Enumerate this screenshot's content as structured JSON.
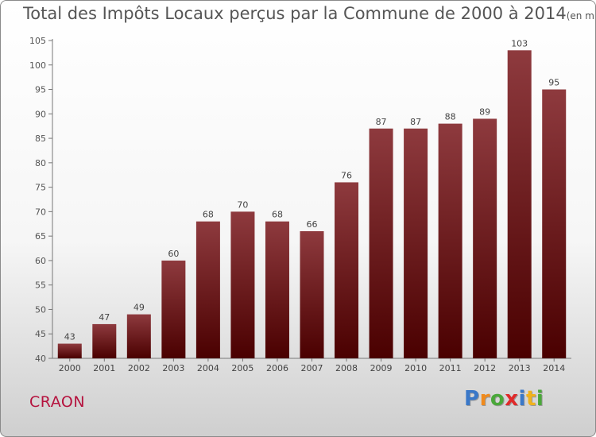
{
  "title": "Total des Impôts Locaux perçus par la Commune de 2000 à 2014",
  "title_unit": "(en milliers d'€)",
  "commune": "CRAON",
  "logo": {
    "text": "Proxiti",
    "letters": [
      {
        "ch": "P",
        "color": "#3a78c8"
      },
      {
        "ch": "r",
        "color": "#f08a1c"
      },
      {
        "ch": "o",
        "color": "#4aa83a"
      },
      {
        "ch": "x",
        "color": "#e02a2a"
      },
      {
        "ch": "i",
        "color": "#3a78c8"
      },
      {
        "ch": "t",
        "color": "#f0b21c"
      },
      {
        "ch": "i",
        "color": "#4aa83a"
      }
    ]
  },
  "colors": {
    "bar_top": "#8e3a3e",
    "bar_bottom": "#4a0000",
    "text": "#555555",
    "commune": "#b5123e"
  },
  "chart_data": {
    "type": "bar",
    "title": "Total des Impôts Locaux perçus par la Commune de 2000 à 2014",
    "ylabel": "en milliers d'€",
    "categories": [
      "2000",
      "2001",
      "2002",
      "2003",
      "2004",
      "2005",
      "2006",
      "2007",
      "2008",
      "2009",
      "2010",
      "2011",
      "2012",
      "2013",
      "2014"
    ],
    "values": [
      43,
      47,
      49,
      60,
      68,
      70,
      68,
      66,
      76,
      87,
      87,
      88,
      89,
      103,
      95
    ],
    "ylim": [
      40,
      105
    ],
    "yticks": [
      40,
      45,
      50,
      55,
      60,
      65,
      70,
      75,
      80,
      85,
      90,
      95,
      100,
      105
    ],
    "grid": false
  }
}
